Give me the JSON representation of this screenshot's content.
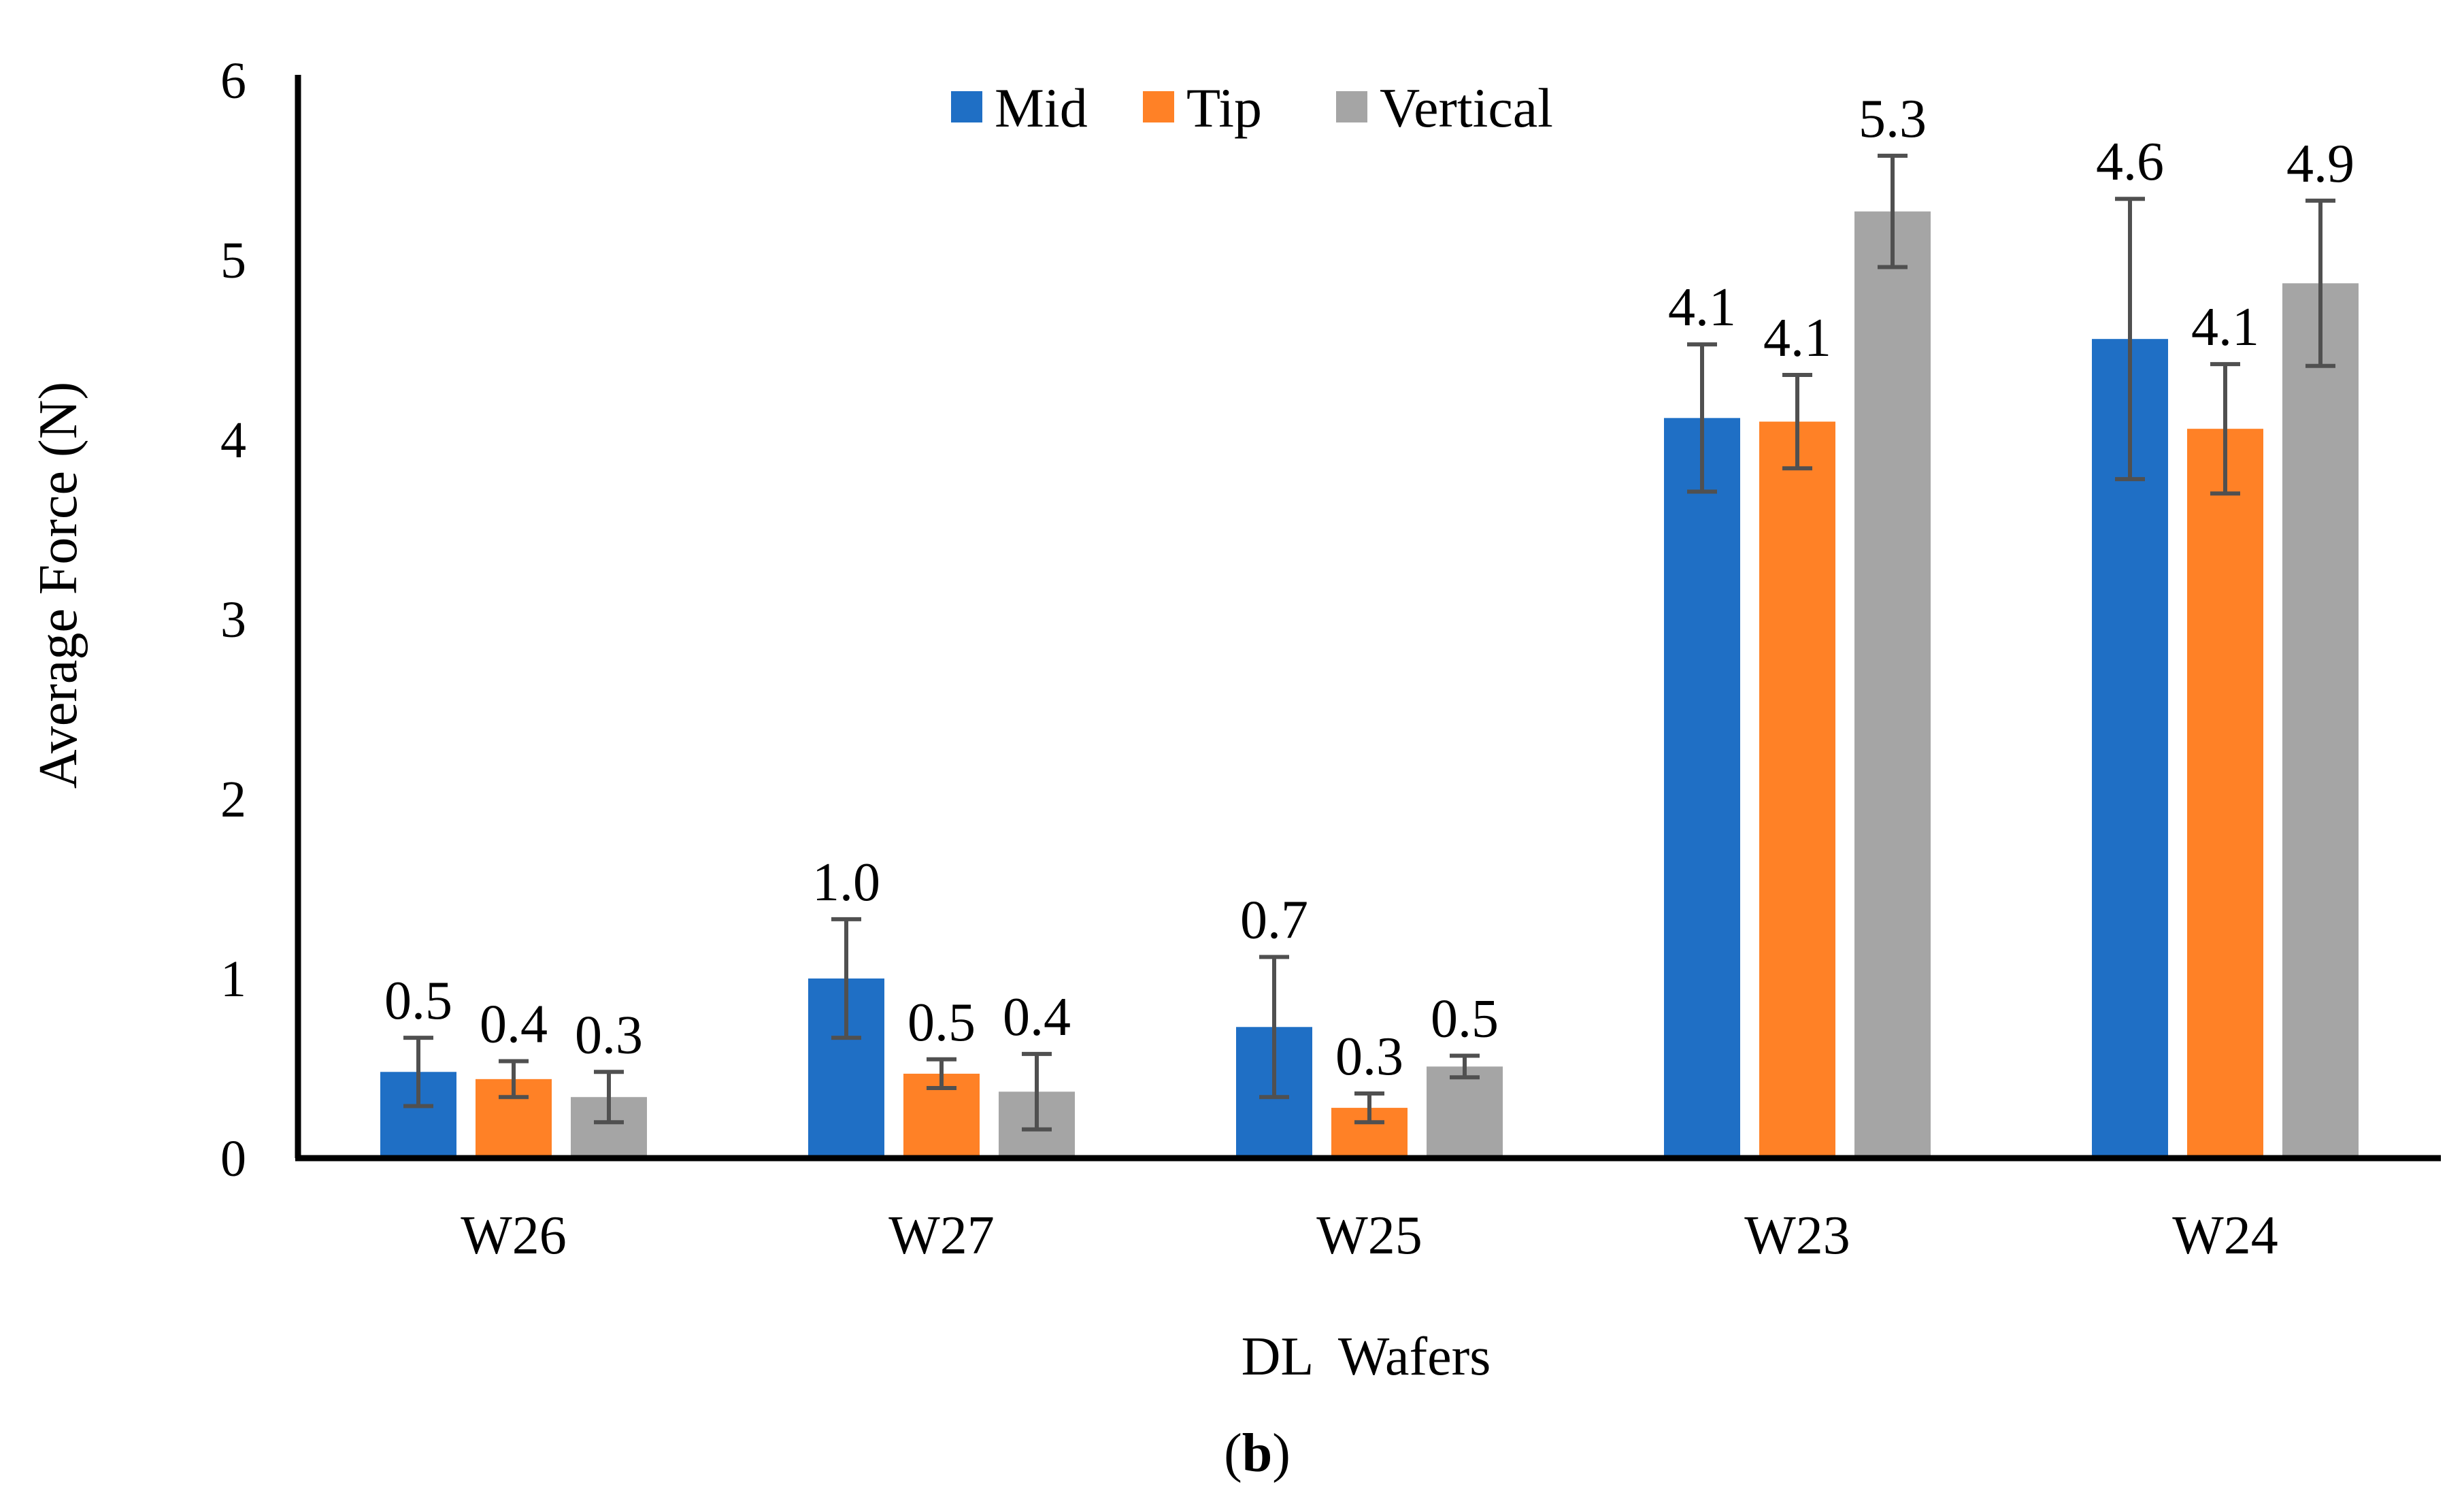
{
  "chart_data": {
    "type": "bar",
    "title": "",
    "xlabel": "DL  Wafers",
    "ylabel": "Average Force (N)",
    "ylim": [
      0,
      6
    ],
    "yticks": [
      0,
      1,
      2,
      3,
      4,
      5,
      6
    ],
    "grid": false,
    "legend_position": "top-center",
    "categories": [
      "W26",
      "W27",
      "W25",
      "W23",
      "W24"
    ],
    "series": [
      {
        "name": "Mid",
        "color": "#1F6FC5",
        "values": [
          0.48,
          1.0,
          0.73,
          4.12,
          4.56
        ],
        "errors": [
          0.19,
          0.33,
          0.39,
          0.41,
          0.78
        ],
        "labels": [
          "0.5",
          "1.0",
          "0.7",
          "4.1",
          "4.6"
        ]
      },
      {
        "name": "Tip",
        "color": "#FF8126",
        "values": [
          0.44,
          0.47,
          0.28,
          4.1,
          4.06
        ],
        "errors": [
          0.1,
          0.08,
          0.08,
          0.26,
          0.36
        ],
        "labels": [
          "0.4",
          "0.5",
          "0.3",
          "4.1",
          "4.1"
        ]
      },
      {
        "name": "Vertical",
        "color": "#A5A5A5",
        "values": [
          0.34,
          0.37,
          0.51,
          5.27,
          4.87
        ],
        "errors": [
          0.14,
          0.21,
          0.06,
          0.31,
          0.46
        ],
        "labels": [
          "0.3",
          "0.4",
          "0.5",
          "5.3",
          "4.9"
        ]
      }
    ],
    "error_bar_color": "#505050"
  },
  "caption": {
    "open": "(",
    "letter": "b",
    "close": ")"
  }
}
